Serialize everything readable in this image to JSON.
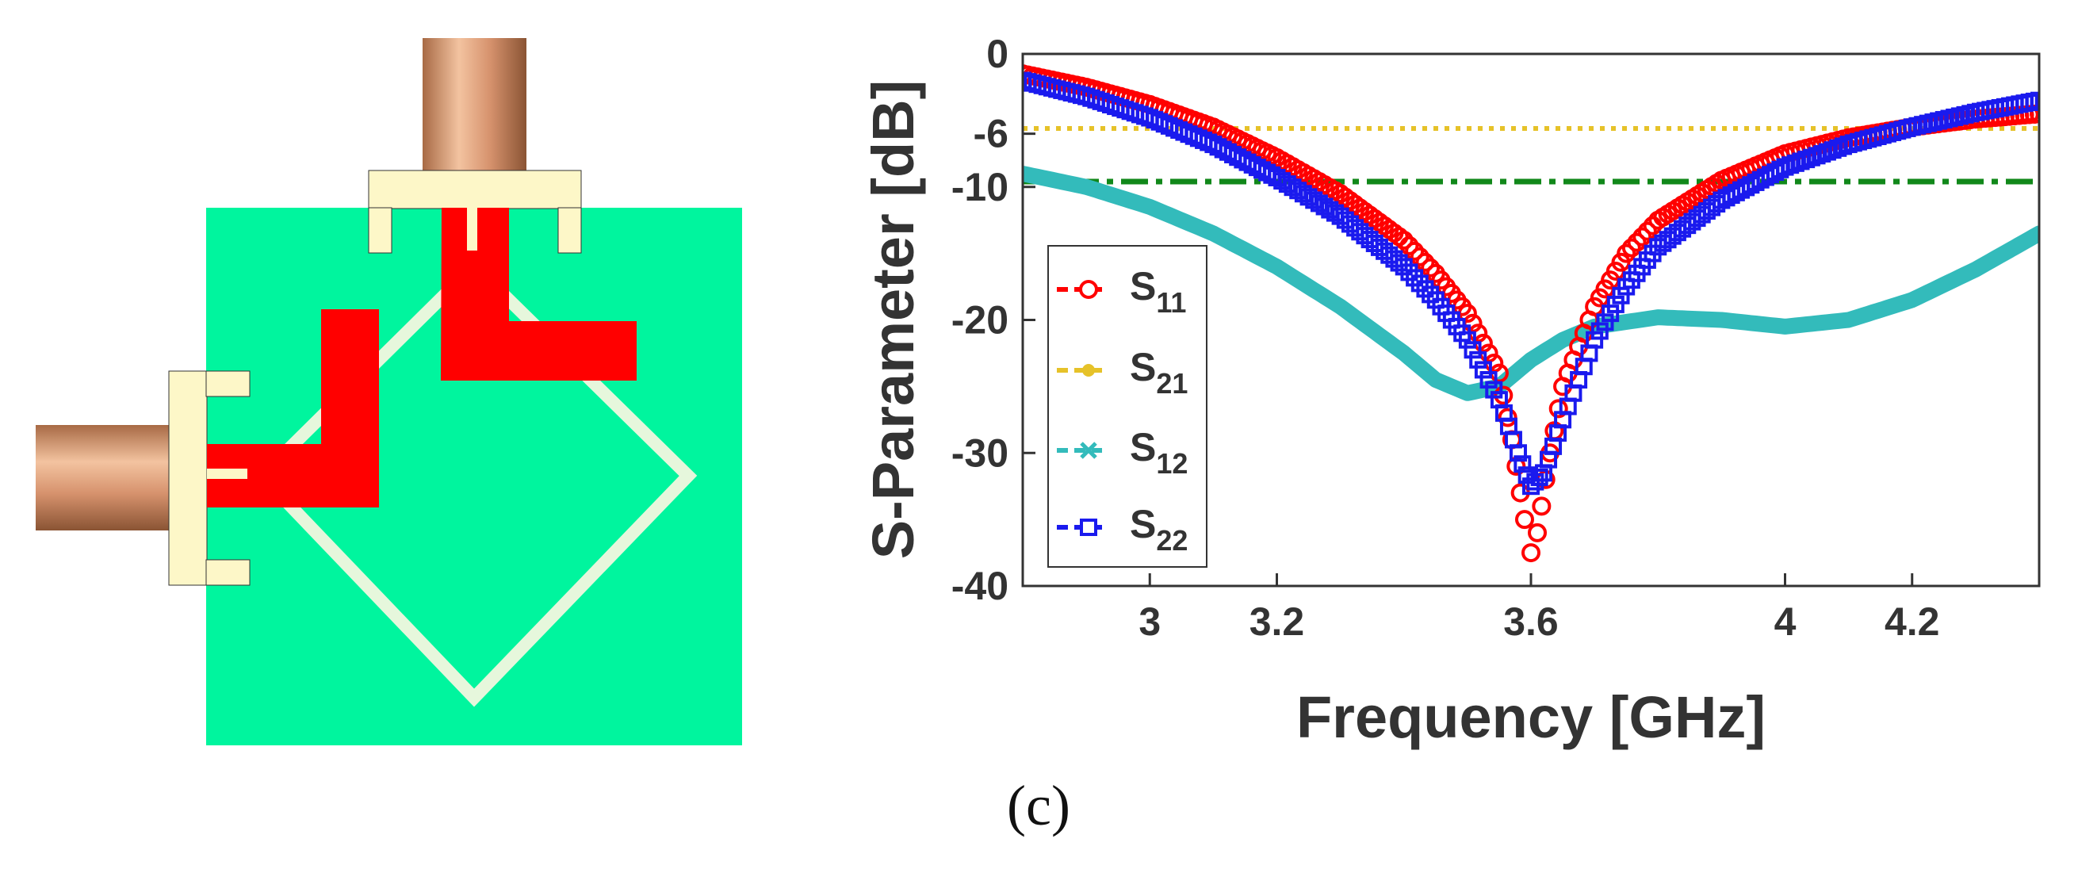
{
  "figure": {
    "caption": "(c)"
  },
  "colors": {
    "substrate": "#00f59e",
    "feed": "#ff0000",
    "ring": "#e6f7dc",
    "connector_flange": "#fdf7c8",
    "connector_body": "#d6926d"
  },
  "chart_data": {
    "type": "line",
    "xlabel": "Frequency [GHz]",
    "ylabel": "S-Parameter [dB]",
    "xlim": [
      2.8,
      4.4
    ],
    "ylim": [
      -40,
      0
    ],
    "xticks": [
      3,
      3.2,
      3.6,
      4,
      4.2
    ],
    "xtick_labels": [
      "3",
      "3.2",
      "3.6",
      "4",
      "4.2"
    ],
    "yticks": [
      0,
      -6,
      -10,
      -20,
      -30,
      -40
    ],
    "ytick_labels": [
      "0",
      "-6",
      "-10",
      "-20",
      "-30",
      "-40"
    ],
    "grid": false,
    "legend_position": "left",
    "series": [
      {
        "name": "S11",
        "label_main": "S",
        "label_sub": "11",
        "color": "#ff0000",
        "marker": "circle",
        "x": [
          2.8,
          2.9,
          3.0,
          3.1,
          3.2,
          3.3,
          3.4,
          3.45,
          3.5,
          3.55,
          3.57,
          3.59,
          3.6,
          3.61,
          3.63,
          3.65,
          3.7,
          3.75,
          3.8,
          3.9,
          4.0,
          4.1,
          4.2,
          4.3,
          4.4
        ],
        "y": [
          -1.5,
          -2.5,
          -3.8,
          -5.5,
          -7.8,
          -10.5,
          -14,
          -16.5,
          -19.5,
          -24,
          -29,
          -35,
          -37.5,
          -36,
          -30,
          -25,
          -19,
          -15,
          -12.5,
          -9.5,
          -7.5,
          -6.3,
          -5.5,
          -4.9,
          -4.5
        ]
      },
      {
        "name": "S21",
        "label_main": "S",
        "label_sub": "21",
        "color": "#e6c229",
        "marker": "dot",
        "x": [
          2.8,
          4.4
        ],
        "y": [
          -5.6,
          -5.6
        ]
      },
      {
        "name": "S12",
        "label_main": "S",
        "label_sub": "12",
        "color": "#33bbbb",
        "marker": "x",
        "x": [
          2.8,
          2.9,
          3.0,
          3.1,
          3.2,
          3.3,
          3.4,
          3.45,
          3.5,
          3.55,
          3.6,
          3.65,
          3.7,
          3.8,
          3.9,
          4.0,
          4.1,
          4.2,
          4.3,
          4.4
        ],
        "y": [
          -9,
          -10,
          -11.5,
          -13.5,
          -16,
          -19,
          -22.5,
          -24.5,
          -25.5,
          -25,
          -23,
          -21.5,
          -20.5,
          -19.8,
          -20,
          -20.5,
          -20,
          -18.5,
          -16.2,
          -13.5
        ]
      },
      {
        "name": "S22",
        "label_main": "S",
        "label_sub": "22",
        "color": "#1a1aee",
        "marker": "square",
        "x": [
          2.8,
          2.9,
          3.0,
          3.1,
          3.2,
          3.3,
          3.4,
          3.45,
          3.5,
          3.55,
          3.58,
          3.6,
          3.62,
          3.65,
          3.7,
          3.75,
          3.8,
          3.9,
          4.0,
          4.1,
          4.2,
          4.3,
          4.4
        ],
        "y": [
          -2,
          -3.2,
          -4.8,
          -6.8,
          -9.3,
          -12.2,
          -16,
          -18.5,
          -21.5,
          -26,
          -30,
          -32.5,
          -31.5,
          -27.5,
          -21.5,
          -17.5,
          -14.5,
          -11,
          -8.5,
          -6.8,
          -5.5,
          -4.4,
          -3.5
        ]
      },
      {
        "name": "-10 dB reference",
        "color": "#11881a",
        "marker": "none",
        "x": [
          2.8,
          4.4
        ],
        "y": [
          -9.6,
          -9.6
        ]
      }
    ]
  }
}
